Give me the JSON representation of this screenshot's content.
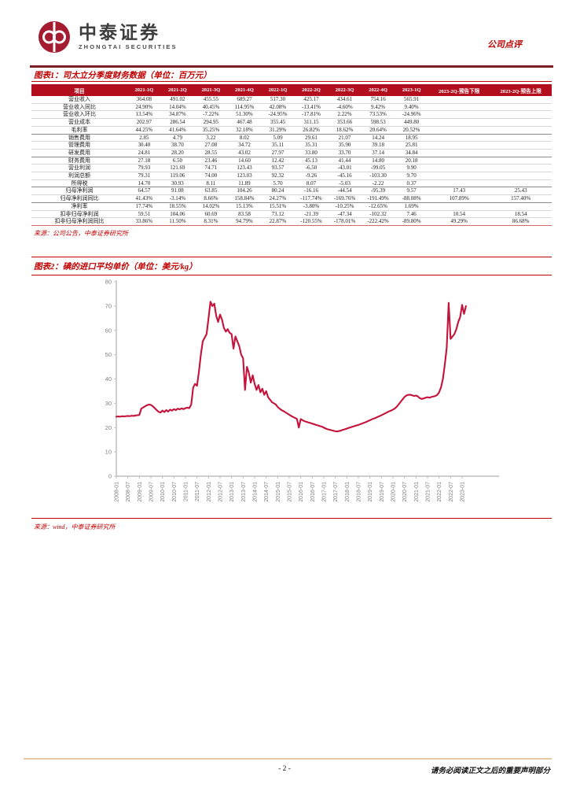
{
  "header": {
    "brand_cn": "中泰证券",
    "brand_en": "ZHONGTAI SECURITIES",
    "doc_type": "公司点评"
  },
  "figure1": {
    "title": "图表1：司太立分季度财务数据（单位：百万元）",
    "source": "来源：公司公告，中泰证券研究所",
    "table": {
      "columns": [
        "项目",
        "2021-1Q",
        "2021-2Q",
        "2021-3Q",
        "2021-4Q",
        "2022-1Q",
        "2022-2Q",
        "2022-3Q",
        "2022-4Q",
        "2023-1Q",
        "2023-2Q-预告下限",
        "2023-2Q-预告上限"
      ],
      "rows": [
        {
          "label": "营业收入",
          "values": [
            "364.08",
            "491.02",
            "455.55",
            "689.27",
            "517.30",
            "425.17",
            "434.61",
            "754.16",
            "565.91",
            "",
            ""
          ]
        },
        {
          "label": "营业收入同比",
          "values": [
            "24.90%",
            "14.04%",
            "40.45%",
            "114.95%",
            "42.08%",
            "-13.41%",
            "-4.60%",
            "9.42%",
            "9.40%",
            "",
            ""
          ]
        },
        {
          "label": "营业收入环比",
          "values": [
            "13.54%",
            "34.87%",
            "-7.22%",
            "51.30%",
            "-24.95%",
            "-17.81%",
            "2.22%",
            "73.53%",
            "-24.96%",
            "",
            ""
          ]
        },
        {
          "label": "营业成本",
          "values": [
            "202.97",
            "286.54",
            "294.95",
            "467.48",
            "355.45",
            "311.15",
            "353.66",
            "598.53",
            "449.80",
            "",
            ""
          ]
        },
        {
          "label": "毛利率",
          "values": [
            "44.25%",
            "41.64%",
            "35.25%",
            "32.18%",
            "31.29%",
            "26.82%",
            "18.62%",
            "20.64%",
            "20.52%",
            "",
            ""
          ]
        },
        {
          "label": "销售费用",
          "values": [
            "2.85",
            "4.79",
            "3.22",
            "8.02",
            "5.09",
            "29.61",
            "21.07",
            "14.24",
            "18.95",
            "",
            ""
          ]
        },
        {
          "label": "管理费用",
          "values": [
            "30.40",
            "38.70",
            "27.08",
            "34.72",
            "35.11",
            "35.31",
            "35.90",
            "39.18",
            "25.81",
            "",
            ""
          ]
        },
        {
          "label": "研发费用",
          "values": [
            "24.81",
            "28.20",
            "28.55",
            "43.02",
            "27.97",
            "33.80",
            "33.70",
            "37.14",
            "34.84",
            "",
            ""
          ]
        },
        {
          "label": "财务费用",
          "values": [
            "27.18",
            "6.50",
            "23.46",
            "14.60",
            "12.42",
            "45.13",
            "41.44",
            "14.80",
            "20.18",
            "",
            ""
          ]
        },
        {
          "label": "营业利润",
          "values": [
            "79.93",
            "121.69",
            "74.71",
            "123.43",
            "93.57",
            "-6.50",
            "-43.01",
            "-99.05",
            "9.90",
            "",
            ""
          ]
        },
        {
          "label": "利润总额",
          "values": [
            "79.31",
            "119.06",
            "74.00",
            "123.03",
            "92.32",
            "-9.26",
            "-45.16",
            "-103.30",
            "9.70",
            "",
            ""
          ]
        },
        {
          "label": "所得税",
          "values": [
            "14.70",
            "30.93",
            "8.11",
            "11.89",
            "5.70",
            "8.07",
            "-5.03",
            "-2.22",
            "0.37",
            "",
            ""
          ]
        },
        {
          "label": "归母净利润",
          "values": [
            "64.57",
            "91.08",
            "63.85",
            "104.26",
            "80.24",
            "-16.16",
            "-44.54",
            "-95.39",
            "9.57",
            "17.43",
            "25.43"
          ]
        },
        {
          "label": "归母净利润同比",
          "values": [
            "41.43%",
            "-3.14%",
            "8.66%",
            "158.84%",
            "24.27%",
            "-117.74%",
            "-169.76%",
            "-191.49%",
            "-88.08%",
            "107.89%",
            "157.40%"
          ]
        },
        {
          "label": "净利率",
          "values": [
            "17.74%",
            "18.55%",
            "14.02%",
            "15.13%",
            "15.51%",
            "-3.80%",
            "-10.25%",
            "-12.65%",
            "1.69%",
            "",
            ""
          ]
        },
        {
          "label": "扣非归母净利润",
          "values": [
            "59.51",
            "104.06",
            "60.69",
            "83.58",
            "73.12",
            "-21.39",
            "-47.34",
            "-102.32",
            "7.46",
            "10.54",
            "18.54"
          ]
        },
        {
          "label": "扣非归母净利润同比",
          "values": [
            "33.86%",
            "11.50%",
            "8.31%",
            "94.79%",
            "22.87%",
            "-120.55%",
            "-178.01%",
            "-222.42%",
            "-89.80%",
            "49.29%",
            "86.68%"
          ]
        }
      ]
    }
  },
  "figure2": {
    "title": "图表2：碘的进口平均单价（单位：美元/kg）",
    "source": "来源：wind，中泰证券研究所"
  },
  "chart_data": {
    "type": "line",
    "title": "碘的进口平均单价（单位：美元/kg）",
    "ylabel": "美元/kg",
    "ylim": [
      0,
      80
    ],
    "y_ticks": [
      0,
      10,
      20,
      30,
      40,
      50,
      60,
      70,
      80
    ],
    "grid": false,
    "legend": "none",
    "x_start": "2008-01",
    "x_step_months": 1,
    "x_tick_labels": [
      "2008-01",
      "2008-07",
      "2009-01",
      "2009-07",
      "2010-01",
      "2010-07",
      "2011-01",
      "2011-07",
      "2012-01",
      "2012-07",
      "2013-01",
      "2013-07",
      "2014-01",
      "2014-07",
      "2015-01",
      "2015-07",
      "2016-01",
      "2016-07",
      "2017-01",
      "2017-07",
      "2018-01",
      "2018-07",
      "2019-01",
      "2019-07",
      "2020-01",
      "2020-07",
      "2021-01",
      "2021-07",
      "2022-01",
      "2022-07",
      "2023-01"
    ],
    "series": [
      {
        "name": "碘的进口平均单价",
        "values": [
          24.5,
          24.6,
          24.5,
          24.7,
          24.6,
          24.7,
          24.8,
          24.7,
          24.9,
          24.8,
          25.0,
          25.1,
          25.2,
          27.8,
          28.3,
          28.8,
          29.2,
          29.5,
          29.3,
          28.8,
          28.0,
          27.2,
          26.5,
          26.2,
          27.0,
          26.4,
          27.2,
          26.6,
          27.4,
          27.0,
          27.6,
          27.2,
          27.8,
          27.5,
          27.9,
          27.6,
          28.0,
          28.2,
          28.0,
          29.5,
          36.5,
          38.0,
          37.2,
          43.0,
          50.0,
          55.5,
          57.0,
          58.5,
          65.0,
          71.8,
          70.0,
          71.0,
          66.0,
          63.5,
          66.5,
          64.5,
          61.0,
          59.5,
          60.5,
          59.0,
          58.5,
          52.5,
          57.5,
          55.5,
          53.5,
          50.0,
          48.5,
          35.5,
          45.0,
          42.5,
          38.5,
          41.5,
          38.0,
          35.5,
          37.5,
          34.5,
          36.0,
          33.5,
          35.0,
          32.5,
          31.5,
          30.5,
          30.0,
          29.5,
          28.5,
          27.8,
          27.2,
          26.8,
          26.3,
          25.8,
          25.3,
          24.8,
          24.4,
          24.0,
          23.6,
          20.0,
          23.5,
          23.0,
          22.6,
          22.4,
          22.1,
          21.9,
          21.6,
          21.4,
          21.1,
          20.9,
          20.6,
          20.4,
          20.0,
          19.6,
          19.3,
          19.1,
          18.9,
          18.7,
          18.5,
          18.4,
          18.6,
          18.8,
          19.1,
          19.3,
          19.6,
          19.9,
          20.1,
          20.4,
          20.6,
          20.9,
          21.1,
          21.4,
          21.7,
          22.0,
          22.3,
          22.7,
          23.0,
          23.4,
          23.7,
          24.0,
          24.4,
          24.7,
          25.1,
          25.5,
          25.9,
          26.3,
          26.7,
          27.0,
          27.4,
          27.9,
          28.6,
          29.6,
          30.6,
          31.6,
          32.6,
          33.2,
          33.5,
          33.5,
          33.3,
          33.0,
          33.2,
          32.8,
          32.1,
          31.8,
          32.0,
          32.3,
          32.5,
          32.3,
          32.6,
          32.8,
          33.0,
          33.4,
          34.5,
          36.5,
          40.0,
          46.0,
          53.0,
          71.3,
          56.5,
          57.5,
          58.5,
          60.5,
          63.5,
          65.5,
          70.5,
          66.8,
          70.0
        ]
      }
    ],
    "line_color": "#C5123A",
    "axis_color": "#BFBFBF",
    "tick_label_color": "#7F7F7F"
  },
  "footer": {
    "page_label": "- 2 -",
    "disclaimer": "请务必阅读正文之后的重要声明部分"
  },
  "colors": {
    "accent_red": "#C00000",
    "table_header_bg": "#B20E1E",
    "top_rule": "#7A1F23",
    "footer_rule": "#E6C9A3",
    "logo_red": "#A51C30"
  }
}
